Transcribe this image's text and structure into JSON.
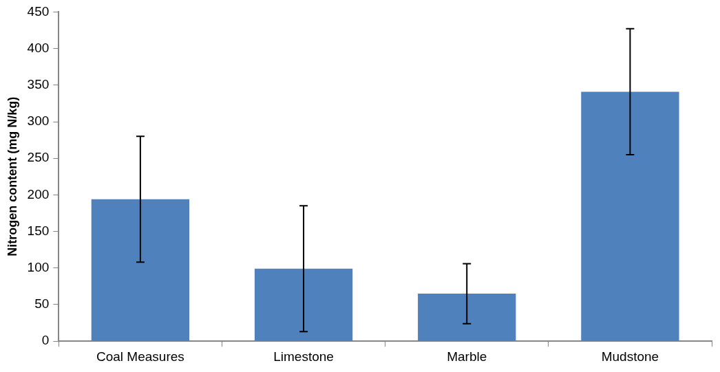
{
  "chart_data": {
    "type": "bar",
    "ylabel": "Nitrogen content (mg N/kg)",
    "categories": [
      "Coal Measures",
      "Limestone",
      "Marble",
      "Mudstone"
    ],
    "values": [
      194,
      99,
      65,
      341
    ],
    "errors": [
      86,
      86,
      41,
      86
    ],
    "color": "#4f81bd",
    "ylim": [
      0,
      450
    ],
    "yticks": [
      0,
      50,
      100,
      150,
      200,
      250,
      300,
      350,
      400,
      450
    ],
    "grid": false,
    "legend": false
  }
}
